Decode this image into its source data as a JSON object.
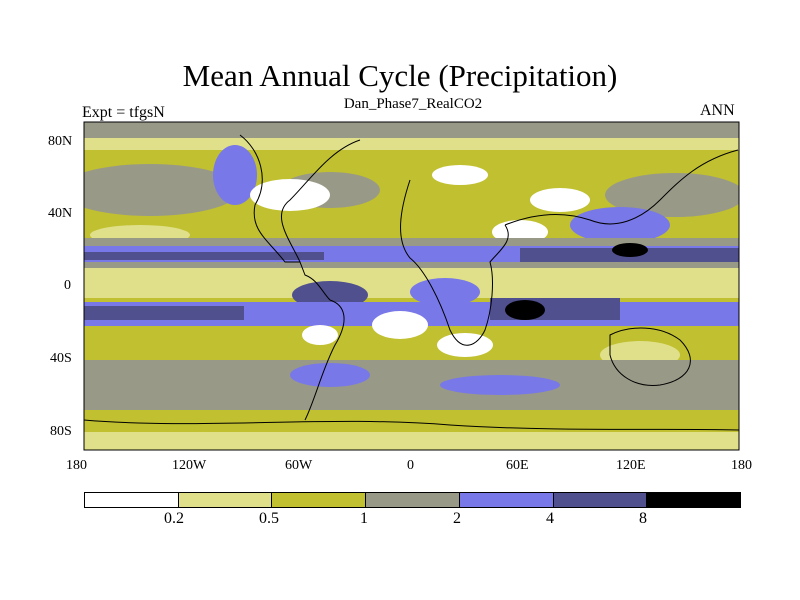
{
  "title": "Mean Annual Cycle (Precipitation)",
  "left_label": "Expt = tfgsN",
  "center_label": "Dan_Phase7_RealCO2",
  "right_label": "ANN",
  "y_ticks": [
    "80N",
    "40N",
    "0",
    "40S",
    "80S"
  ],
  "x_ticks": [
    "180",
    "120W",
    "60W",
    "0",
    "60E",
    "120E",
    "180"
  ],
  "colorbar": {
    "colors": [
      "#ffffff",
      "#e0e08a",
      "#c0c030",
      "#999988",
      "#7878e8",
      "#50508f",
      "#000000"
    ],
    "labels": [
      "0.2",
      "0.5",
      "1",
      "2",
      "4",
      "8"
    ]
  },
  "map_colors": {
    "white": "#ffffff",
    "light_yellow": "#e0e08a",
    "olive": "#c0c030",
    "gray": "#999988",
    "light_blue": "#7878e8",
    "dark_blue": "#50508f",
    "black": "#000000"
  }
}
